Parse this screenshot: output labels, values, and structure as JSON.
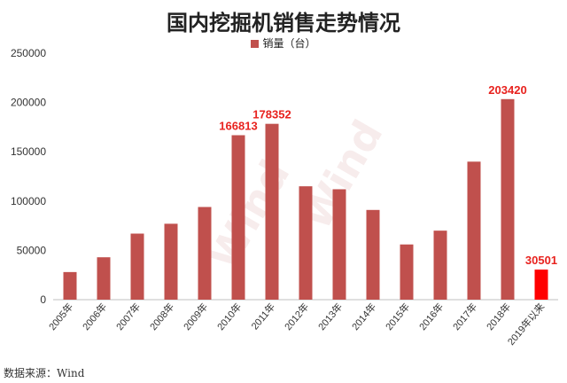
{
  "chart_data": {
    "type": "bar",
    "title": "国内挖掘机销售走势情况",
    "legend": {
      "position": "top-center"
    },
    "series": [
      {
        "name": "销量（台）",
        "color": "#c0504d",
        "values": [
          28000,
          43000,
          67000,
          77000,
          94000,
          166813,
          178352,
          115000,
          112000,
          91000,
          56000,
          70000,
          140000,
          203420,
          30501
        ]
      }
    ],
    "categories": [
      "2005年",
      "2006年",
      "2007年",
      "2008年",
      "2009年",
      "2010年",
      "2011年",
      "2012年",
      "2013年",
      "2014年",
      "2015年",
      "2016年",
      "2017年",
      "2018年",
      "2019年以来"
    ],
    "highlight": {
      "index": 14,
      "color": "#ff0000"
    },
    "data_labels": [
      {
        "index": 5,
        "text": "166813"
      },
      {
        "index": 6,
        "text": "178352"
      },
      {
        "index": 13,
        "text": "203420"
      },
      {
        "index": 14,
        "text": "30501"
      }
    ],
    "data_label_color": "#e8221e",
    "ylim": [
      0,
      250000
    ],
    "yticks": [
      0,
      50000,
      100000,
      150000,
      200000,
      250000
    ],
    "grid": false
  },
  "watermark": "Wind",
  "source": "数据来源：Wind"
}
